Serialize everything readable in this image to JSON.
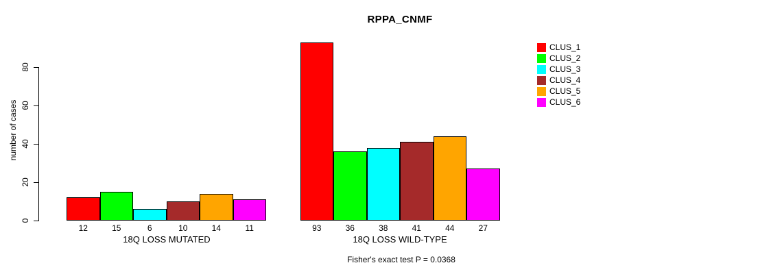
{
  "title": "RPPA_CNMF",
  "footer": "Fisher's exact test P = 0.0368",
  "chart_data": {
    "type": "bar",
    "title": "RPPA_CNMF",
    "ylabel": "number of cases",
    "xlabel": "",
    "ylim": [
      0,
      80
    ],
    "yticks": [
      0,
      20,
      40,
      60,
      80
    ],
    "grid": false,
    "legend_position": "top-right",
    "categories": [
      "18Q LOSS MUTATED",
      "18Q LOSS WILD-TYPE"
    ],
    "series": [
      {
        "name": "CLUS_1",
        "color": "#FF0000",
        "values": [
          12,
          93
        ]
      },
      {
        "name": "CLUS_2",
        "color": "#00FF00",
        "values": [
          15,
          36
        ]
      },
      {
        "name": "CLUS_3",
        "color": "#00FFFF",
        "values": [
          6,
          38
        ]
      },
      {
        "name": "CLUS_4",
        "color": "#A52A2A",
        "values": [
          10,
          41
        ]
      },
      {
        "name": "CLUS_5",
        "color": "#FFA500",
        "values": [
          14,
          44
        ]
      },
      {
        "name": "CLUS_6",
        "color": "#FF00FF",
        "values": [
          11,
          27
        ]
      }
    ],
    "bar_value_labels": [
      [
        12,
        15,
        6,
        10,
        14,
        11
      ],
      [
        93,
        36,
        38,
        41,
        44,
        27
      ]
    ],
    "annotation": "Fisher's exact test P = 0.0368"
  }
}
